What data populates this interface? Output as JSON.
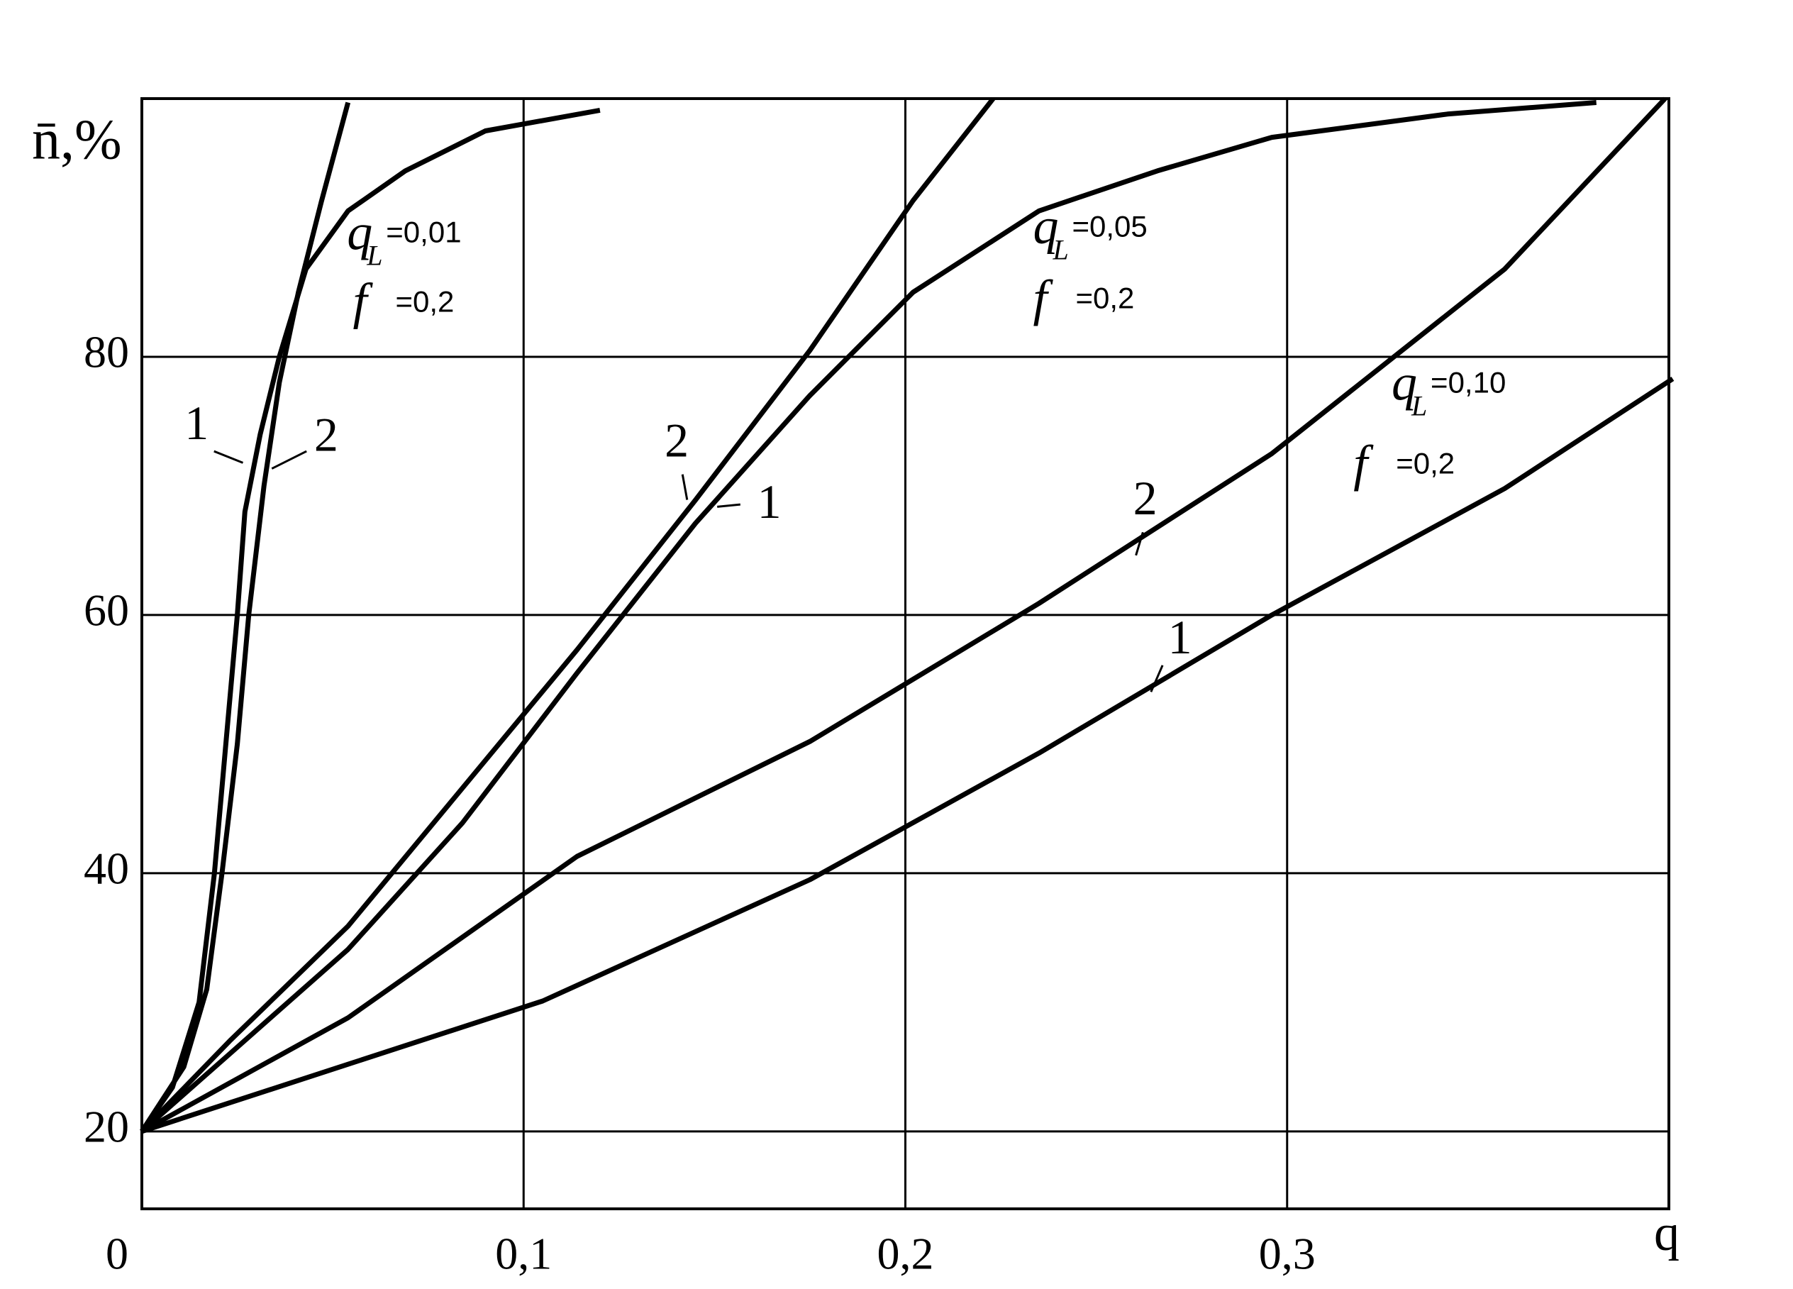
{
  "chart_data": {
    "type": "line",
    "y_label": "n̄,%",
    "x_label": "q",
    "xlim": [
      0,
      0.4
    ],
    "ylim": [
      14,
      100
    ],
    "xticks": [
      {
        "value": 0,
        "label": "0"
      },
      {
        "value": 0.1,
        "label": "0,1"
      },
      {
        "value": 0.2,
        "label": "0,2"
      },
      {
        "value": 0.3,
        "label": "0,3"
      }
    ],
    "yticks": [
      20,
      40,
      60,
      80
    ],
    "grid": true,
    "series": [
      {
        "name": "1",
        "color": "#000000",
        "x": [
          0,
          0.008,
          0.015,
          0.019,
          0.022,
          0.025,
          0.027,
          0.031,
          0.036,
          0.043,
          0.054,
          0.069,
          0.09,
          0.12
        ],
        "values": [
          20,
          23.4,
          30,
          40,
          50,
          60,
          68,
          74,
          80,
          86.8,
          91.3,
          94.4,
          97.5,
          99.1
        ]
      },
      {
        "name": "2",
        "color": "#000000",
        "x": [
          0,
          0.011,
          0.017,
          0.021,
          0.025,
          0.028,
          0.032,
          0.036,
          0.041,
          0.047,
          0.054
        ],
        "values": [
          20,
          25,
          31,
          40,
          50,
          60,
          70,
          78,
          85,
          92,
          99.7
        ]
      },
      {
        "name": "1",
        "color": "#000000",
        "x": [
          0,
          0.023,
          0.054,
          0.084,
          0.114,
          0.145,
          0.175,
          0.202,
          0.235,
          0.266,
          0.296,
          0.342,
          0.381
        ],
        "values": [
          20,
          26,
          34.1,
          43.9,
          55.5,
          67.1,
          77,
          85,
          91.3,
          94.4,
          97,
          98.8,
          99.7
        ]
      },
      {
        "name": "2",
        "color": "#000000",
        "x": [
          0,
          0.023,
          0.054,
          0.084,
          0.114,
          0.145,
          0.175,
          0.202,
          0.223
        ],
        "values": [
          20,
          27,
          35.9,
          46.6,
          57.3,
          68.9,
          80.5,
          92.1,
          100
        ]
      },
      {
        "name": "1",
        "color": "#000000",
        "x": [
          0,
          0.054,
          0.105,
          0.175,
          0.235,
          0.296,
          0.357,
          0.401
        ],
        "values": [
          20,
          25.2,
          30.1,
          39.5,
          49.3,
          60,
          69.8,
          78.3
        ]
      },
      {
        "name": "2",
        "color": "#000000",
        "x": [
          0,
          0.054,
          0.114,
          0.175,
          0.235,
          0.296,
          0.357,
          0.399
        ],
        "values": [
          20,
          28.8,
          41.3,
          50.2,
          60.9,
          72.5,
          86.8,
          100
        ]
      }
    ],
    "annotations": [
      [
        {
          "symbol": "q",
          "subscript": "L",
          "text": "=0,01"
        },
        {
          "symbol": "f",
          "text": "=0,2"
        }
      ],
      [
        {
          "symbol": "q",
          "subscript": "L",
          "text": "=0,05"
        },
        {
          "symbol": "f",
          "text": "=0,2"
        }
      ],
      [
        {
          "symbol": "q",
          "subscript": "L",
          "text": "=0,10"
        },
        {
          "symbol": "f",
          "text": "=0,2"
        }
      ]
    ]
  }
}
